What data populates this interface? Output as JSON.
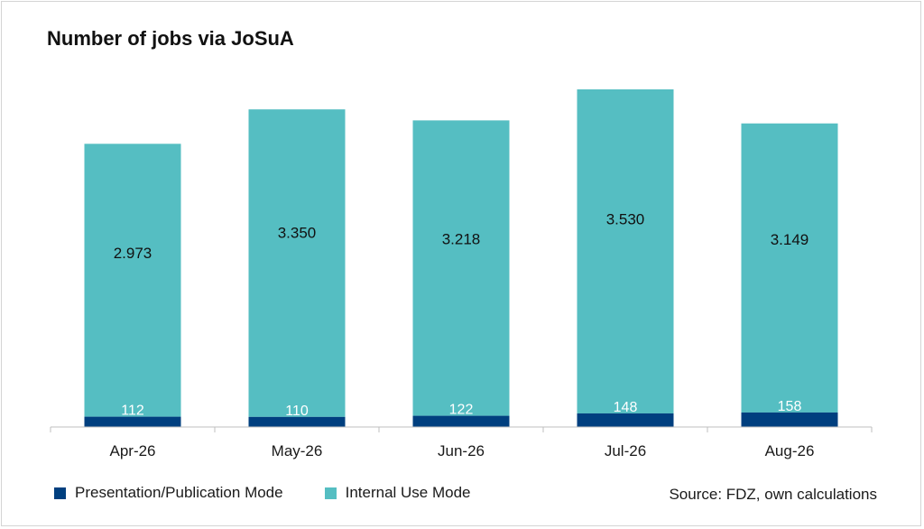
{
  "chart_data": {
    "type": "bar",
    "stacked": true,
    "title": "Number of jobs via JoSuA",
    "categories": [
      "Apr-26",
      "May-26",
      "Jun-26",
      "Jul-26",
      "Aug-26"
    ],
    "series": [
      {
        "name": "Presentation/Publication Mode",
        "color": "#003f7f",
        "values": [
          112,
          110,
          122,
          148,
          158
        ],
        "labels": [
          "112",
          "110",
          "122",
          "148",
          "158"
        ]
      },
      {
        "name": "Internal Use Mode",
        "color": "#55bec2",
        "values": [
          2973,
          3350,
          3218,
          3530,
          3149
        ],
        "labels": [
          "2.973",
          "3.350",
          "3.218",
          "3.530",
          "3.149"
        ]
      }
    ],
    "ylim": [
      0,
      3800
    ],
    "grid": false,
    "legend_position": "bottom-left",
    "source": "Source: FDZ, own calculations"
  }
}
